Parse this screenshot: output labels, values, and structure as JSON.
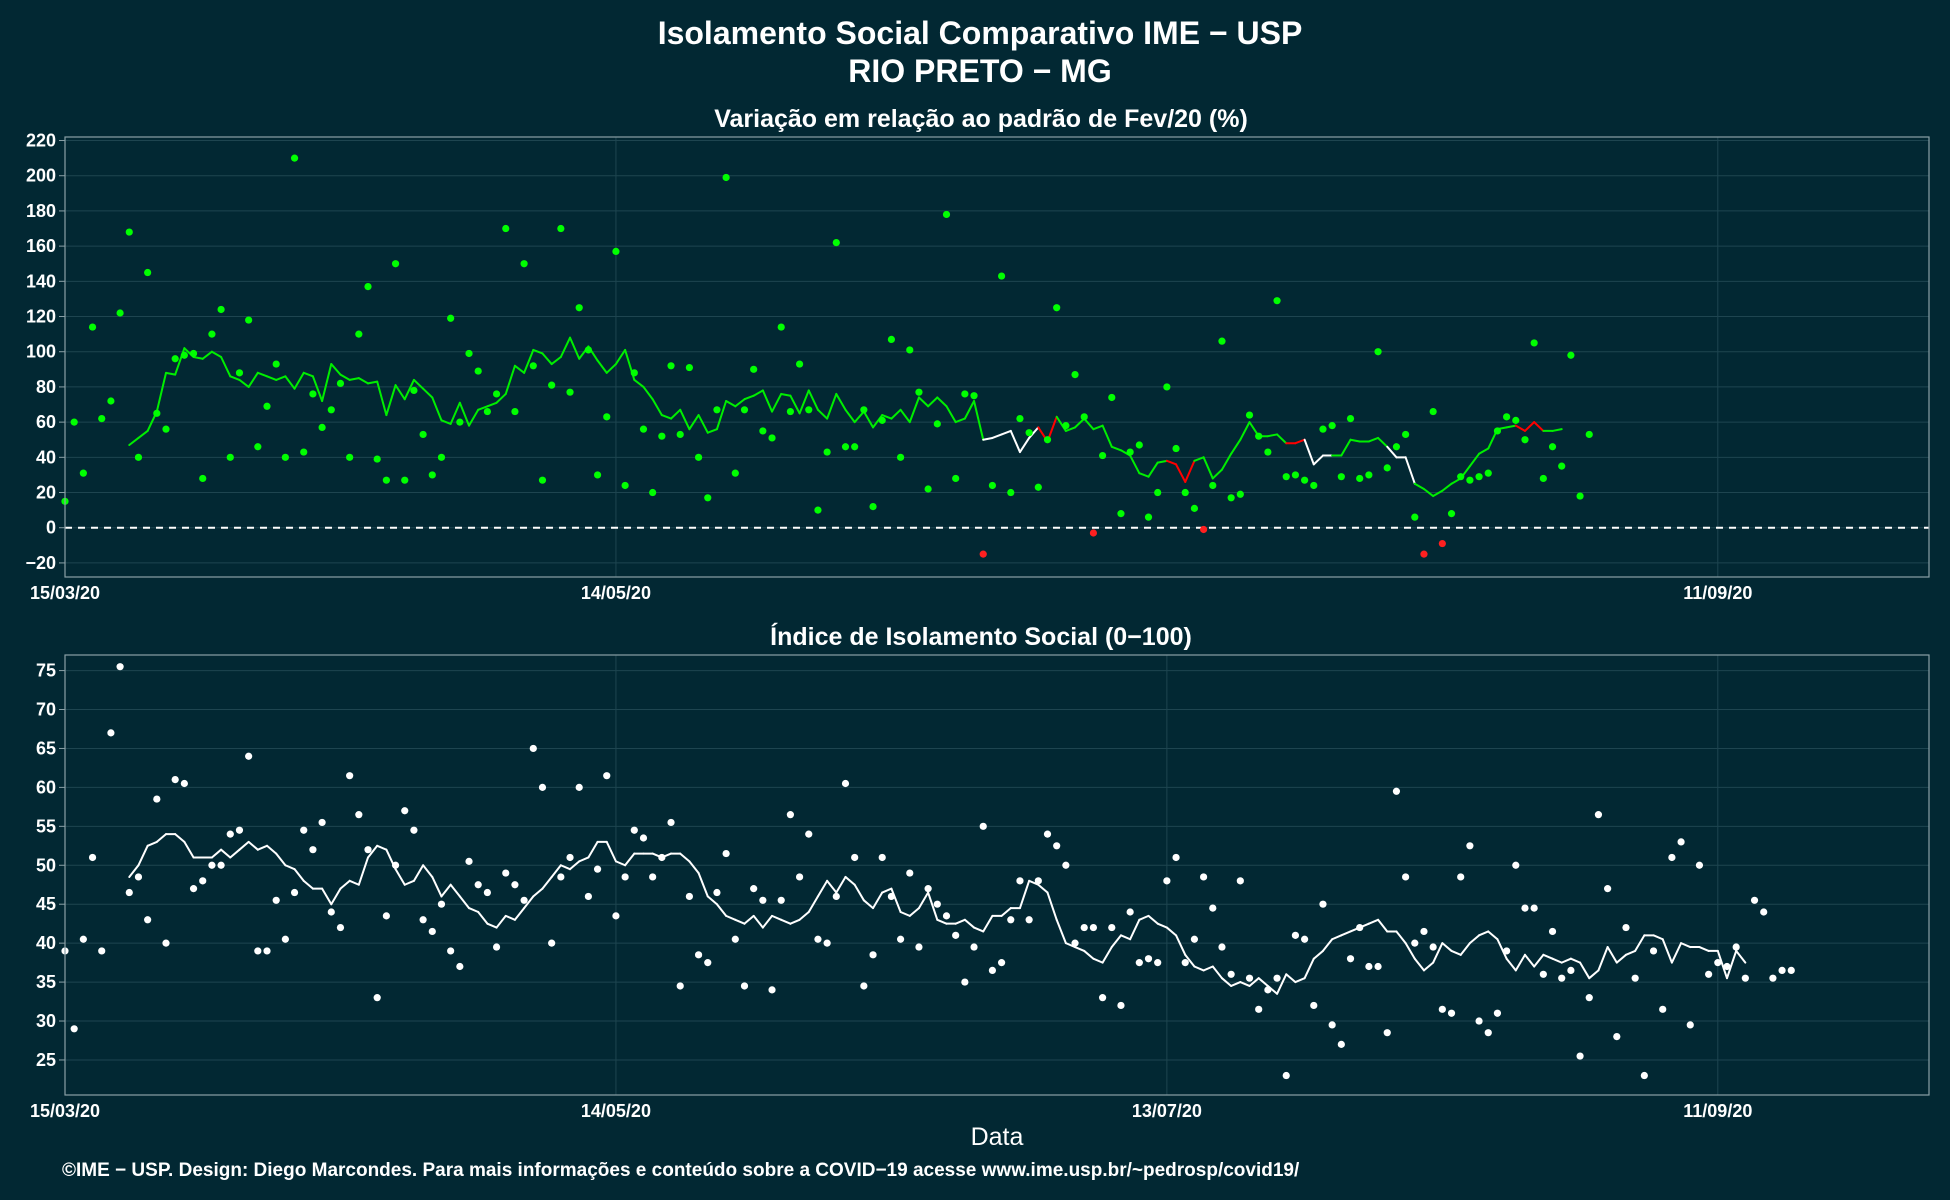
{
  "header": {
    "title_line1": "Isolamento Social Comparativo IME − USP",
    "title_line2": "RIO PRETO − MG"
  },
  "footer": {
    "credit": "©IME − USP. Design: Diego Marcondes. Para mais informações e conteúdo sobre a COVID−19 acesse www.ime.usp.br/~pedrosp/covid19/"
  },
  "colors": {
    "background": "#022833",
    "points_positive": "#00ff00",
    "points_negative": "#ff2020",
    "line_positive": "#00ee00",
    "line_negative": "#ff0000",
    "line_neutral": "#ffffff",
    "index_points": "#ffffff",
    "zero_line": "#ffffff"
  },
  "chart_data": [
    {
      "type": "scatter",
      "title": "Variação em relação ao padrão de Fev/20 (%)",
      "xlabel": "",
      "ylabel": "",
      "x_start": "2020-03-15",
      "xlim": [
        "2020-03-15",
        "2020-10-04"
      ],
      "ylim": [
        -28,
        222
      ],
      "yticks": [
        -20,
        0,
        20,
        40,
        60,
        80,
        100,
        120,
        140,
        160,
        180,
        200,
        220
      ],
      "xticks": [
        {
          "date": "2020-03-15",
          "label": "15/03/20"
        },
        {
          "date": "2020-05-14",
          "label": "14/05/20"
        },
        {
          "date": "2020-09-11",
          "label": "11/09/20"
        }
      ],
      "grid": true,
      "zero_line": "dashed",
      "points": [
        15,
        60,
        31,
        114,
        62,
        72,
        122,
        168,
        40,
        145,
        65,
        56,
        96,
        98,
        99,
        28,
        110,
        124,
        40,
        88,
        118,
        46,
        69,
        93,
        40,
        210,
        43,
        76,
        57,
        67,
        82,
        40,
        110,
        137,
        39,
        27,
        150,
        27,
        78,
        53,
        30,
        40,
        119,
        60,
        99,
        89,
        66,
        76,
        170,
        66,
        150,
        92,
        27,
        81,
        170,
        77,
        125,
        101,
        30,
        63,
        157,
        24,
        88,
        56,
        20,
        52,
        92,
        53,
        91,
        40,
        17,
        67,
        199,
        31,
        67,
        90,
        55,
        51,
        114,
        66,
        93,
        67,
        10,
        43,
        162,
        46,
        46,
        67,
        12,
        61,
        107,
        40,
        101,
        77,
        22,
        59,
        178,
        28,
        76,
        75,
        -15,
        24,
        143,
        20,
        62,
        54,
        23,
        50,
        125,
        58,
        87,
        63,
        -3,
        41,
        74,
        8,
        43,
        47,
        6,
        20,
        80,
        45,
        20,
        11,
        -1,
        24,
        106,
        17,
        19,
        64,
        52,
        43,
        129,
        29,
        30,
        27,
        24,
        56,
        58,
        29,
        62,
        28,
        30,
        100,
        34,
        46,
        53,
        6,
        -15,
        66,
        -9,
        8,
        29,
        27,
        29,
        31,
        55,
        63,
        61,
        50,
        105,
        28,
        46,
        35,
        98,
        18,
        53
      ],
      "smooth": [
        47,
        51,
        55,
        66,
        88,
        87,
        102,
        97,
        96,
        100,
        97,
        86,
        84,
        80,
        88,
        86,
        84,
        86,
        79,
        88,
        86,
        72,
        93,
        87,
        84,
        85,
        82,
        83,
        64,
        81,
        73,
        84,
        79,
        74,
        61,
        59,
        71,
        58,
        67,
        69,
        71,
        76,
        92,
        88,
        101,
        99,
        93,
        97,
        108,
        96,
        103,
        95,
        88,
        93,
        101,
        84,
        80,
        73,
        64,
        62,
        67,
        56,
        64,
        54,
        56,
        72,
        69,
        73,
        75,
        78,
        66,
        76,
        75,
        65,
        78,
        67,
        62,
        76,
        67,
        60,
        66,
        57,
        64,
        62,
        67,
        60,
        74,
        69,
        74,
        69,
        60,
        62,
        72,
        50,
        51,
        53,
        55,
        43,
        51,
        57,
        49,
        63,
        55,
        57,
        62,
        56,
        58,
        46,
        44,
        41,
        31,
        29,
        37,
        38,
        36,
        26,
        38,
        40,
        28,
        33,
        42,
        50,
        60,
        52,
        52,
        53,
        48,
        48,
        50,
        36,
        41,
        41,
        41,
        50,
        49,
        49,
        51,
        46,
        40,
        40,
        25,
        22,
        18,
        21,
        25,
        28,
        35,
        42,
        45,
        56,
        57,
        58,
        55,
        60,
        55,
        55,
        56
      ],
      "negative_segments": [
        [
          99,
          101
        ],
        [
          113,
          116
        ],
        [
          126,
          128
        ],
        [
          151,
          154
        ]
      ]
    },
    {
      "type": "scatter",
      "title": "Índice de Isolamento Social (0−100)",
      "xlabel": "Data",
      "ylabel": "",
      "x_start": "2020-03-15",
      "xlim": [
        "2020-03-15",
        "2020-10-04"
      ],
      "ylim": [
        20.5,
        77
      ],
      "yticks": [
        25,
        30,
        35,
        40,
        45,
        50,
        55,
        60,
        65,
        70,
        75
      ],
      "xticks": [
        {
          "date": "2020-03-15",
          "label": "15/03/20"
        },
        {
          "date": "2020-05-14",
          "label": "14/05/20"
        },
        {
          "date": "2020-07-13",
          "label": "13/07/20"
        },
        {
          "date": "2020-09-11",
          "label": "11/09/20"
        }
      ],
      "grid": true,
      "points": [
        39.0,
        29.0,
        40.5,
        51.0,
        39.0,
        67.0,
        75.5,
        46.5,
        48.5,
        43.0,
        58.5,
        40.0,
        61.0,
        60.5,
        47.0,
        48.0,
        50.0,
        50.0,
        54.0,
        54.5,
        64.0,
        39.0,
        39.0,
        45.5,
        40.5,
        46.5,
        54.5,
        52.0,
        55.5,
        44.0,
        42.0,
        61.5,
        56.5,
        52.0,
        33.0,
        43.5,
        50.0,
        57.0,
        54.5,
        43.0,
        41.5,
        45.0,
        39.0,
        37.0,
        50.5,
        47.5,
        46.5,
        39.5,
        49.0,
        47.5,
        45.5,
        65.0,
        60.0,
        40.0,
        48.5,
        51.0,
        60.0,
        46.0,
        49.5,
        61.5,
        43.5,
        48.5,
        54.5,
        53.5,
        48.5,
        51.0,
        55.5,
        34.5,
        46.0,
        38.5,
        37.5,
        46.5,
        51.5,
        40.5,
        34.5,
        47.0,
        45.5,
        34.0,
        45.5,
        56.5,
        48.5,
        54.0,
        40.5,
        40.0,
        46.0,
        60.5,
        51.0,
        34.5,
        38.5,
        51.0,
        46.0,
        40.5,
        49.0,
        39.5,
        47.0,
        45.0,
        43.5,
        41.0,
        35.0,
        39.5,
        55.0,
        36.5,
        37.5,
        43.0,
        48.0,
        43.0,
        48.0,
        54.0,
        52.5,
        50.0,
        40.0,
        42.0,
        42.0,
        33.0,
        42.0,
        32.0,
        44.0,
        37.5,
        38.0,
        37.5,
        48.0,
        51.0,
        37.5,
        40.5,
        48.5,
        44.5,
        39.5,
        36.0,
        48.0,
        35.5,
        31.5,
        34.0,
        35.5,
        23.0,
        41.0,
        40.5,
        32.0,
        45.0,
        29.5,
        27.0,
        38.0,
        42.0,
        37.0,
        37.0,
        28.5,
        59.5,
        48.5,
        40.0,
        41.5,
        39.5,
        31.5,
        31.0,
        48.5,
        52.5,
        30.0,
        28.5,
        31.0,
        39.0,
        50.0,
        44.5,
        44.5,
        36.0,
        41.5,
        35.5,
        36.5,
        25.5,
        33.0,
        56.5,
        47.0,
        28.0,
        42.0,
        35.5,
        23.0,
        39.0,
        31.5,
        51.0,
        53.0,
        29.5,
        50.0,
        36.0,
        37.5,
        37.0,
        39.5,
        35.5,
        45.5,
        44.0,
        35.5,
        36.5,
        36.5
      ],
      "smooth": [
        48.5,
        50.0,
        52.5,
        53.0,
        54.0,
        54.0,
        53.0,
        51.0,
        51.0,
        51.0,
        52.0,
        51.0,
        52.0,
        53.0,
        52.0,
        52.5,
        51.5,
        50.0,
        49.5,
        48.0,
        47.0,
        47.0,
        45.0,
        47.0,
        48.0,
        47.5,
        51.0,
        52.5,
        52.0,
        49.5,
        47.5,
        48.0,
        50.0,
        48.5,
        46.0,
        47.5,
        46.0,
        44.5,
        44.0,
        42.5,
        42.0,
        43.5,
        43.0,
        44.5,
        46.0,
        47.0,
        48.5,
        50.0,
        49.5,
        50.5,
        51.0,
        53.0,
        53.0,
        50.5,
        50.0,
        51.5,
        51.5,
        51.5,
        51.0,
        51.5,
        51.5,
        50.5,
        49.0,
        46.0,
        45.0,
        43.5,
        43.0,
        42.5,
        43.5,
        42.0,
        43.5,
        43.0,
        42.5,
        43.0,
        44.0,
        46.0,
        48.0,
        46.5,
        48.5,
        47.5,
        45.5,
        44.5,
        46.5,
        47.0,
        44.0,
        43.5,
        44.5,
        46.5,
        43.0,
        42.5,
        42.5,
        43.0,
        42.0,
        41.5,
        43.5,
        43.5,
        44.5,
        44.5,
        48.0,
        47.5,
        46.5,
        43.0,
        40.0,
        39.5,
        39.0,
        38.0,
        37.5,
        39.5,
        41.0,
        40.5,
        43.0,
        43.5,
        42.5,
        42.0,
        41.0,
        38.5,
        37.0,
        36.5,
        37.0,
        35.5,
        34.5,
        35.0,
        34.5,
        35.5,
        34.5,
        33.5,
        36.0,
        35.0,
        35.5,
        38.0,
        39.0,
        40.5,
        41.0,
        41.5,
        42.0,
        42.5,
        43.0,
        41.5,
        41.5,
        40.0,
        38.0,
        36.5,
        37.5,
        40.0,
        39.0,
        38.5,
        40.0,
        41.0,
        41.5,
        40.5,
        38.0,
        36.5,
        38.5,
        37.0,
        38.5,
        38.0,
        37.5,
        38.0,
        37.5,
        35.5,
        36.5,
        39.5,
        37.5,
        38.5,
        39.0,
        41.0,
        41.0,
        40.5,
        37.5,
        40.0,
        39.5,
        39.5,
        39.0,
        39.0,
        35.5,
        39.0,
        37.5
      ]
    }
  ]
}
